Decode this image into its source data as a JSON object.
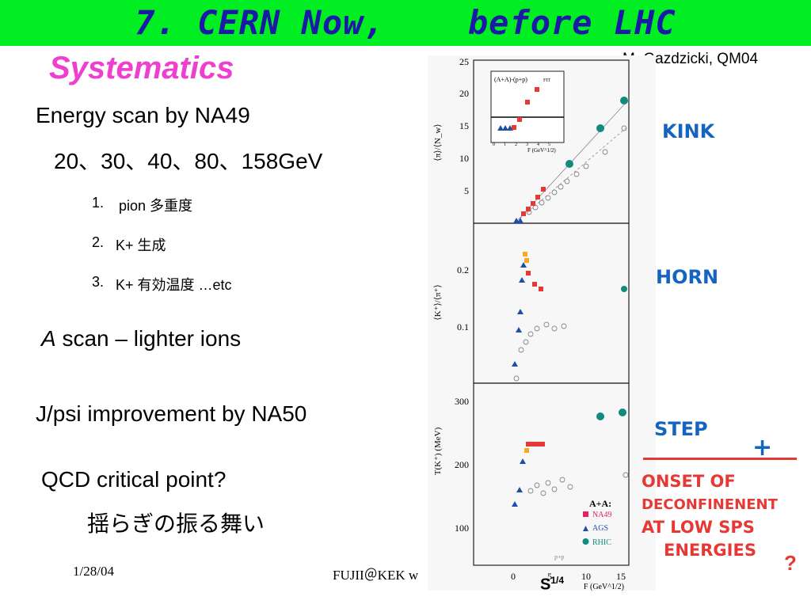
{
  "header": {
    "title": "7. CERN Now,    before LHC"
  },
  "subtitle": "Systematics",
  "author": "M. Gazdzicki, QM04",
  "bullets": {
    "energy_scan": "Energy scan by NA49",
    "energies": "20、30、40、80、158GeV",
    "item1_num": "1.",
    "item1_text": "pion 多重度",
    "item2_num": "2.",
    "item2_text": "K+ 生成",
    "item3_num": "3.",
    "item3_text": "K+ 有効温度  …etc",
    "a_scan_italic": "A",
    "a_scan_rest": " scan – lighter ions",
    "jpsi": "J/psi improvement by NA50",
    "qcd": "QCD critical point?",
    "fluct": "揺らぎの振る舞い"
  },
  "footer": {
    "date": "1/28/04",
    "credit": "FUJII＠KEK w"
  },
  "figure": {
    "panels": [
      {
        "ylabel": "⟨π⟩/⟨N_w⟩",
        "yticks": [
          "25",
          "20",
          "15",
          "10",
          "5"
        ]
      },
      {
        "ylabel": "⟨K⁺⟩/⟨π⁺⟩",
        "yticks": [
          "0.2",
          "0.1"
        ]
      },
      {
        "ylabel": "T(K⁺) (MeV)",
        "yticks": [
          "300",
          "200",
          "100"
        ]
      }
    ],
    "xticks": [
      "0",
      "5",
      "10",
      "15"
    ],
    "xlabel": "F (GeV^1/2)",
    "inset": {
      "label": "(A+A)-(p+p)",
      "fit_label": "FIT",
      "xlabel": "F (GeV^1/2)",
      "xticks": [
        "0",
        "1",
        "2",
        "3",
        "4",
        "5"
      ]
    },
    "pp_label": "p+p",
    "legend": {
      "title": "A+A:",
      "items": [
        {
          "label": "NA49",
          "color": "#e91e63"
        },
        {
          "label": "AGS",
          "color": "#1e4fa8"
        },
        {
          "label": "RHIC",
          "color": "#128a7c"
        }
      ]
    },
    "s_label": "S",
    "s_sup": "1/4"
  },
  "annotations": {
    "kink": "KINK",
    "horn": "HORN",
    "step": "STEP",
    "plus": "+",
    "onset1": "ONSET   OF",
    "onset2": "DECONFINENENT",
    "onset3": "AT LOW   SPS",
    "onset4": "ENERGIES",
    "question": "?"
  },
  "colors": {
    "title_bar": "#00ee22",
    "title_text": "#1a1aa6",
    "subtitle": "#ee3fcf",
    "hand_blue": "#1565c0",
    "hand_red": "#e53935"
  }
}
